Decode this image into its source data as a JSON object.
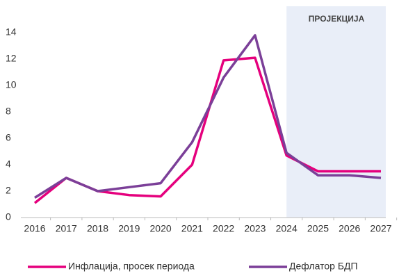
{
  "chart_data": {
    "type": "line",
    "categories": [
      "2016",
      "2017",
      "2018",
      "2019",
      "2020",
      "2021",
      "2022",
      "2023",
      "2024",
      "2025",
      "2026",
      "2027"
    ],
    "series": [
      {
        "name": "Инфлација, просек периода",
        "color": "#e5007d",
        "values": [
          1.1,
          3.0,
          2.0,
          1.7,
          1.6,
          4.0,
          11.9,
          12.1,
          4.7,
          3.5,
          3.5,
          3.5
        ]
      },
      {
        "name": "Дефлатор БДП",
        "color": "#7b3f98",
        "values": [
          1.5,
          3.0,
          2.0,
          2.3,
          2.6,
          5.7,
          10.6,
          13.8,
          4.9,
          3.2,
          3.2,
          3.0
        ]
      }
    ],
    "ylim": [
      0,
      16
    ],
    "yticks": [
      0,
      2,
      4,
      6,
      8,
      10,
      12,
      14
    ],
    "grid": false,
    "legend": "bottom",
    "annotation": {
      "text": "ПРОЈЕКЦИЈА",
      "from": "2024",
      "color": "#e9eef8"
    }
  }
}
